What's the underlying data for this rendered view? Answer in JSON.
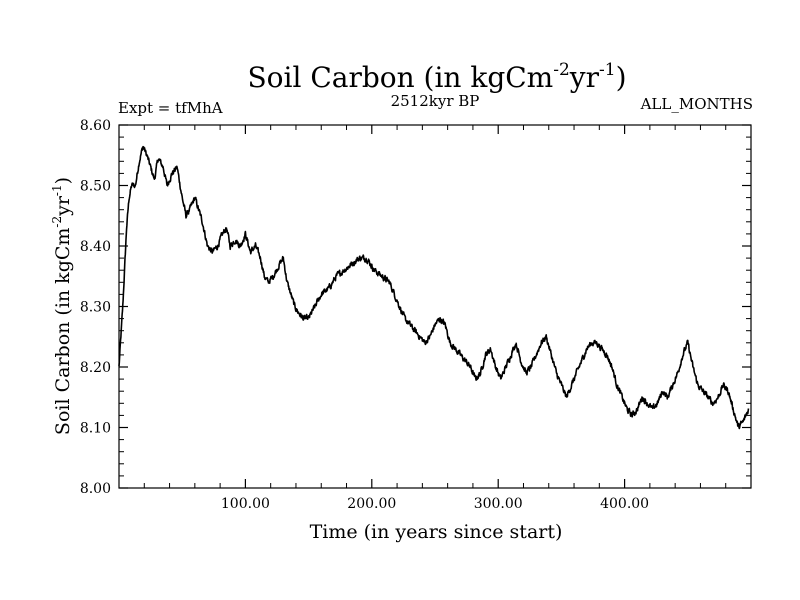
{
  "chart_data": {
    "type": "line",
    "title": "Soil Carbon (in kgCm",
    "title_sup1": "-2",
    "title_mid": "yr",
    "title_sup2": "-1",
    "title_end": ")",
    "experiment": "Expt = tfMhA",
    "period": "2512kyr BP",
    "months": "ALL_MONTHS",
    "xlabel": "Time (in years since start)",
    "ylabel": "Soil Carbon (in kgCm",
    "ylabel_sup1": "-2",
    "ylabel_mid": "yr",
    "ylabel_sup2": "-1",
    "ylabel_end": ")",
    "xlim": [
      0,
      500
    ],
    "ylim": [
      8.0,
      8.6
    ],
    "xticks": [
      100,
      200,
      300,
      400
    ],
    "xtick_labels": [
      "100.00",
      "200.00",
      "300.00",
      "400.00"
    ],
    "yticks": [
      8.0,
      8.1,
      8.2,
      8.3,
      8.4,
      8.5,
      8.6
    ],
    "ytick_labels": [
      "8.00",
      "8.10",
      "8.20",
      "8.30",
      "8.40",
      "8.50",
      "8.60"
    ],
    "series": [
      {
        "name": "Soil Carbon",
        "noise_amplitude": 0.009,
        "x": [
          0,
          3,
          6,
          8,
          10,
          13,
          16,
          19,
          22,
          25,
          28,
          31,
          35,
          38,
          42,
          46,
          50,
          53,
          56,
          60,
          63,
          66,
          70,
          74,
          78,
          82,
          85,
          88,
          92,
          96,
          100,
          104,
          108,
          112,
          115,
          118,
          122,
          127,
          130,
          133,
          136,
          139,
          142,
          146,
          150,
          155,
          160,
          166,
          172,
          178,
          184,
          190,
          196,
          202,
          208,
          214,
          218,
          222,
          226,
          230,
          234,
          238,
          242,
          246,
          250,
          254,
          258,
          262,
          266,
          270,
          274,
          278,
          282,
          286,
          290,
          294,
          298,
          302,
          306,
          310,
          314,
          318,
          322,
          326,
          330,
          334,
          338,
          342,
          346,
          350,
          354,
          358,
          362,
          366,
          370,
          374,
          378,
          382,
          386,
          390,
          394,
          398,
          402,
          406,
          410,
          414,
          418,
          422,
          426,
          430,
          434,
          438,
          442,
          446,
          450,
          454,
          458,
          462,
          466,
          470,
          474,
          478,
          482,
          486,
          490,
          494,
          498
        ],
        "values": [
          8.2,
          8.3,
          8.43,
          8.48,
          8.5,
          8.5,
          8.54,
          8.565,
          8.55,
          8.53,
          8.51,
          8.545,
          8.53,
          8.5,
          8.52,
          8.53,
          8.48,
          8.45,
          8.46,
          8.48,
          8.46,
          8.44,
          8.4,
          8.39,
          8.4,
          8.42,
          8.43,
          8.4,
          8.41,
          8.4,
          8.42,
          8.39,
          8.4,
          8.38,
          8.35,
          8.34,
          8.35,
          8.37,
          8.38,
          8.34,
          8.32,
          8.3,
          8.29,
          8.28,
          8.28,
          8.3,
          8.32,
          8.33,
          8.35,
          8.36,
          8.37,
          8.38,
          8.38,
          8.36,
          8.35,
          8.34,
          8.32,
          8.3,
          8.28,
          8.27,
          8.26,
          8.25,
          8.24,
          8.25,
          8.27,
          8.28,
          8.27,
          8.24,
          8.23,
          8.22,
          8.21,
          8.2,
          8.18,
          8.19,
          8.22,
          8.23,
          8.2,
          8.18,
          8.2,
          8.22,
          8.24,
          8.21,
          8.19,
          8.2,
          8.22,
          8.24,
          8.25,
          8.22,
          8.19,
          8.17,
          8.15,
          8.17,
          8.19,
          8.21,
          8.23,
          8.24,
          8.24,
          8.23,
          8.22,
          8.2,
          8.17,
          8.15,
          8.13,
          8.12,
          8.13,
          8.15,
          8.14,
          8.13,
          8.14,
          8.16,
          8.15,
          8.17,
          8.19,
          8.22,
          8.24,
          8.2,
          8.17,
          8.16,
          8.15,
          8.14,
          8.15,
          8.17,
          8.16,
          8.13,
          8.1,
          8.11,
          8.13
        ]
      }
    ]
  }
}
